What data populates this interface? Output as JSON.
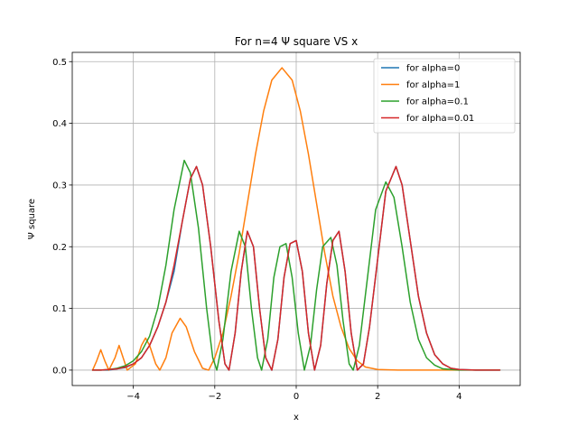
{
  "chart_data": {
    "type": "line",
    "title": "For n=4 Ψ square VS x",
    "xlabel": "x",
    "ylabel": "Ψ square",
    "xlim": [
      -5.5,
      5.5
    ],
    "ylim": [
      -0.025,
      0.515
    ],
    "xticks": [
      -4,
      -2,
      0,
      2,
      4
    ],
    "xtick_labels": [
      "−4",
      "−2",
      "0",
      "2",
      "4"
    ],
    "yticks": [
      0.0,
      0.1,
      0.2,
      0.3,
      0.4,
      0.5
    ],
    "ytick_labels": [
      "0.0",
      "0.1",
      "0.2",
      "0.3",
      "0.4",
      "0.5"
    ],
    "grid": true,
    "legend_position": "top-right",
    "series": [
      {
        "name": "for alpha=0",
        "color": "#1f77b4",
        "points": [
          [
            -5,
            0
          ],
          [
            -4.8,
            0
          ],
          [
            -4.6,
            0
          ],
          [
            -4.4,
            0.002
          ],
          [
            -4.2,
            0.004
          ],
          [
            -4,
            0.01
          ],
          [
            -3.8,
            0.02
          ],
          [
            -3.6,
            0.04
          ],
          [
            -3.4,
            0.07
          ],
          [
            -3.2,
            0.11
          ],
          [
            -3,
            0.16
          ],
          [
            -2.8,
            0.24
          ],
          [
            -2.6,
            0.31
          ],
          [
            -2.45,
            0.33
          ],
          [
            -2.3,
            0.3
          ],
          [
            -2.1,
            0.2
          ],
          [
            -1.9,
            0.08
          ],
          [
            -1.75,
            0.01
          ],
          [
            -1.65,
            0
          ],
          [
            -1.5,
            0.06
          ],
          [
            -1.35,
            0.16
          ],
          [
            -1.2,
            0.225
          ],
          [
            -1.05,
            0.2
          ],
          [
            -0.9,
            0.1
          ],
          [
            -0.75,
            0.02
          ],
          [
            -0.6,
            0
          ],
          [
            -0.45,
            0.05
          ],
          [
            -0.3,
            0.15
          ],
          [
            -0.15,
            0.205
          ],
          [
            0,
            0.21
          ],
          [
            0.15,
            0.16
          ],
          [
            0.3,
            0.06
          ],
          [
            0.45,
            0
          ],
          [
            0.6,
            0.04
          ],
          [
            0.75,
            0.14
          ],
          [
            0.9,
            0.21
          ],
          [
            1.05,
            0.225
          ],
          [
            1.2,
            0.16
          ],
          [
            1.35,
            0.06
          ],
          [
            1.5,
            0
          ],
          [
            1.65,
            0.01
          ],
          [
            1.8,
            0.07
          ],
          [
            2,
            0.18
          ],
          [
            2.2,
            0.29
          ],
          [
            2.45,
            0.33
          ],
          [
            2.6,
            0.3
          ],
          [
            2.8,
            0.21
          ],
          [
            3,
            0.12
          ],
          [
            3.2,
            0.06
          ],
          [
            3.4,
            0.025
          ],
          [
            3.6,
            0.01
          ],
          [
            3.8,
            0.003
          ],
          [
            4,
            0.001
          ],
          [
            4.4,
            0
          ],
          [
            5,
            0
          ]
        ]
      },
      {
        "name": "for alpha=1",
        "color": "#ff7f0e",
        "points": [
          [
            -5,
            0
          ],
          [
            -4.9,
            0.015
          ],
          [
            -4.8,
            0.033
          ],
          [
            -4.7,
            0.015
          ],
          [
            -4.6,
            0
          ],
          [
            -4.45,
            0.02
          ],
          [
            -4.35,
            0.04
          ],
          [
            -4.25,
            0.02
          ],
          [
            -4.15,
            0
          ],
          [
            -3.95,
            0.01
          ],
          [
            -3.8,
            0.04
          ],
          [
            -3.7,
            0.052
          ],
          [
            -3.6,
            0.04
          ],
          [
            -3.45,
            0.01
          ],
          [
            -3.35,
            0
          ],
          [
            -3.2,
            0.02
          ],
          [
            -3.05,
            0.06
          ],
          [
            -2.85,
            0.084
          ],
          [
            -2.7,
            0.07
          ],
          [
            -2.5,
            0.03
          ],
          [
            -2.3,
            0.003
          ],
          [
            -2.15,
            0
          ],
          [
            -2,
            0.02
          ],
          [
            -1.8,
            0.06
          ],
          [
            -1.6,
            0.12
          ],
          [
            -1.4,
            0.19
          ],
          [
            -1.2,
            0.27
          ],
          [
            -1,
            0.35
          ],
          [
            -0.8,
            0.42
          ],
          [
            -0.6,
            0.47
          ],
          [
            -0.35,
            0.49
          ],
          [
            -0.1,
            0.47
          ],
          [
            0.1,
            0.42
          ],
          [
            0.3,
            0.35
          ],
          [
            0.5,
            0.27
          ],
          [
            0.7,
            0.19
          ],
          [
            0.9,
            0.12
          ],
          [
            1.1,
            0.07
          ],
          [
            1.3,
            0.035
          ],
          [
            1.5,
            0.015
          ],
          [
            1.7,
            0.005
          ],
          [
            2,
            0.001
          ],
          [
            2.5,
            0
          ],
          [
            3,
            0
          ],
          [
            3.5,
            0
          ],
          [
            4,
            0
          ]
        ]
      },
      {
        "name": "for alpha=0.1",
        "color": "#2ca02c",
        "points": [
          [
            -5,
            0
          ],
          [
            -4.8,
            0
          ],
          [
            -4.6,
            0.001
          ],
          [
            -4.4,
            0.003
          ],
          [
            -4.2,
            0.007
          ],
          [
            -4,
            0.015
          ],
          [
            -3.8,
            0.03
          ],
          [
            -3.6,
            0.055
          ],
          [
            -3.4,
            0.1
          ],
          [
            -3.2,
            0.17
          ],
          [
            -3,
            0.26
          ],
          [
            -2.75,
            0.34
          ],
          [
            -2.6,
            0.32
          ],
          [
            -2.4,
            0.23
          ],
          [
            -2.2,
            0.1
          ],
          [
            -2.05,
            0.02
          ],
          [
            -1.95,
            0
          ],
          [
            -1.8,
            0.05
          ],
          [
            -1.6,
            0.16
          ],
          [
            -1.4,
            0.225
          ],
          [
            -1.25,
            0.2
          ],
          [
            -1.1,
            0.1
          ],
          [
            -0.95,
            0.02
          ],
          [
            -0.85,
            0
          ],
          [
            -0.7,
            0.05
          ],
          [
            -0.55,
            0.15
          ],
          [
            -0.4,
            0.2
          ],
          [
            -0.25,
            0.205
          ],
          [
            -0.1,
            0.15
          ],
          [
            0.05,
            0.06
          ],
          [
            0.2,
            0
          ],
          [
            0.35,
            0.04
          ],
          [
            0.5,
            0.13
          ],
          [
            0.65,
            0.2
          ],
          [
            0.85,
            0.215
          ],
          [
            1,
            0.17
          ],
          [
            1.15,
            0.08
          ],
          [
            1.3,
            0.01
          ],
          [
            1.4,
            0
          ],
          [
            1.55,
            0.04
          ],
          [
            1.75,
            0.15
          ],
          [
            1.95,
            0.26
          ],
          [
            2.2,
            0.305
          ],
          [
            2.4,
            0.28
          ],
          [
            2.6,
            0.2
          ],
          [
            2.8,
            0.11
          ],
          [
            3,
            0.05
          ],
          [
            3.2,
            0.02
          ],
          [
            3.4,
            0.008
          ],
          [
            3.6,
            0.002
          ],
          [
            4,
            0
          ],
          [
            5,
            0
          ]
        ]
      },
      {
        "name": "for alpha=0.01",
        "color": "#d62728",
        "points": [
          [
            -5,
            0
          ],
          [
            -4.8,
            0
          ],
          [
            -4.6,
            0.001
          ],
          [
            -4.4,
            0.002
          ],
          [
            -4.2,
            0.005
          ],
          [
            -4,
            0.01
          ],
          [
            -3.8,
            0.02
          ],
          [
            -3.6,
            0.04
          ],
          [
            -3.4,
            0.07
          ],
          [
            -3.2,
            0.11
          ],
          [
            -3,
            0.17
          ],
          [
            -2.8,
            0.24
          ],
          [
            -2.6,
            0.31
          ],
          [
            -2.45,
            0.33
          ],
          [
            -2.3,
            0.3
          ],
          [
            -2.1,
            0.2
          ],
          [
            -1.9,
            0.08
          ],
          [
            -1.75,
            0.01
          ],
          [
            -1.65,
            0
          ],
          [
            -1.5,
            0.06
          ],
          [
            -1.35,
            0.16
          ],
          [
            -1.2,
            0.225
          ],
          [
            -1.05,
            0.2
          ],
          [
            -0.9,
            0.1
          ],
          [
            -0.75,
            0.02
          ],
          [
            -0.6,
            0
          ],
          [
            -0.45,
            0.05
          ],
          [
            -0.3,
            0.15
          ],
          [
            -0.15,
            0.205
          ],
          [
            0,
            0.21
          ],
          [
            0.15,
            0.16
          ],
          [
            0.3,
            0.06
          ],
          [
            0.45,
            0
          ],
          [
            0.6,
            0.04
          ],
          [
            0.75,
            0.14
          ],
          [
            0.9,
            0.21
          ],
          [
            1.05,
            0.225
          ],
          [
            1.2,
            0.16
          ],
          [
            1.35,
            0.06
          ],
          [
            1.5,
            0
          ],
          [
            1.65,
            0.01
          ],
          [
            1.8,
            0.07
          ],
          [
            2,
            0.18
          ],
          [
            2.2,
            0.29
          ],
          [
            2.45,
            0.33
          ],
          [
            2.6,
            0.3
          ],
          [
            2.8,
            0.21
          ],
          [
            3,
            0.12
          ],
          [
            3.2,
            0.06
          ],
          [
            3.4,
            0.025
          ],
          [
            3.6,
            0.01
          ],
          [
            3.8,
            0.003
          ],
          [
            4,
            0.001
          ],
          [
            4.4,
            0
          ],
          [
            5,
            0
          ]
        ]
      }
    ]
  }
}
